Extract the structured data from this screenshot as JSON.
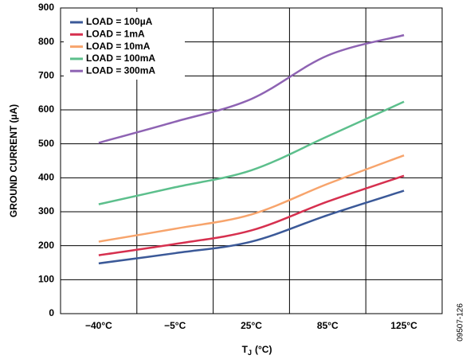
{
  "chart_data": {
    "type": "line",
    "categories": [
      "−40°C",
      "−5°C",
      "25°C",
      "85°C",
      "125°C"
    ],
    "series": [
      {
        "name": "LOAD = 100µA",
        "color": "#3b5998",
        "values": [
          148,
          178,
          212,
          290,
          362
        ]
      },
      {
        "name": "LOAD = 1mA",
        "color": "#d6304f",
        "values": [
          172,
          205,
          245,
          330,
          406
        ]
      },
      {
        "name": "LOAD = 10mA",
        "color": "#f7a46c",
        "values": [
          212,
          250,
          292,
          382,
          466
        ]
      },
      {
        "name": "LOAD = 100mA",
        "color": "#5cbf8c",
        "values": [
          322,
          372,
          422,
          522,
          624
        ]
      },
      {
        "name": "LOAD = 300mA",
        "color": "#8e63b3",
        "values": [
          503,
          565,
          632,
          760,
          820
        ]
      }
    ],
    "ylim": [
      0,
      900
    ],
    "yticks": [
      0,
      100,
      200,
      300,
      400,
      500,
      600,
      700,
      800,
      900
    ],
    "y_label": "GROUND CURRENT (µA)",
    "x_label": "T",
    "x_label_subscript": "J",
    "x_label_suffix": "(°C)",
    "annotation": "09507-126",
    "grid": true,
    "legend": "upper-left"
  }
}
